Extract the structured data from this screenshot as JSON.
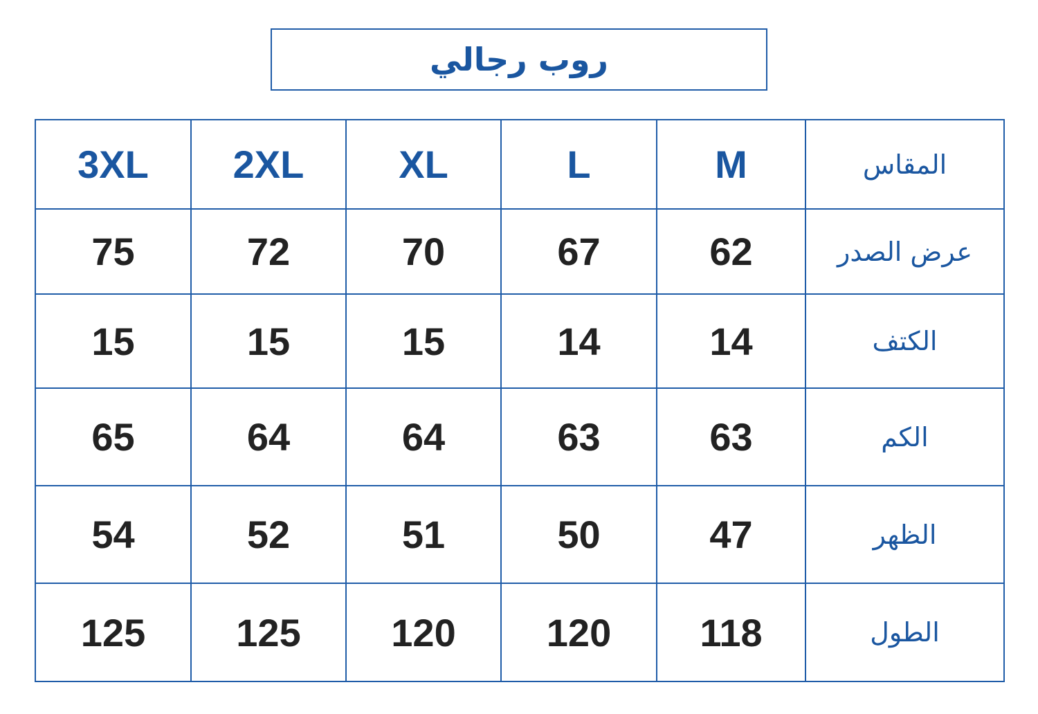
{
  "title": "روب رجالي",
  "table": {
    "header": {
      "label": "المقاس",
      "sizes": [
        "3XL",
        "2XL",
        "XL",
        "L",
        "M"
      ]
    },
    "rows": [
      {
        "label": "عرض الصدر",
        "values": [
          "75",
          "72",
          "70",
          "67",
          "62"
        ]
      },
      {
        "label": "الكتف",
        "values": [
          "15",
          "15",
          "15",
          "14",
          "14"
        ]
      },
      {
        "label": "الكم",
        "values": [
          "65",
          "64",
          "64",
          "63",
          "63"
        ]
      },
      {
        "label": "الظهر",
        "values": [
          "54",
          "52",
          "51",
          "50",
          "47"
        ]
      },
      {
        "label": "الطول",
        "values": [
          "125",
          "125",
          "120",
          "120",
          "118"
        ]
      }
    ]
  },
  "colors": {
    "accent": "#1a56a0",
    "border": "#1f5ca8",
    "value_text": "#222222"
  }
}
